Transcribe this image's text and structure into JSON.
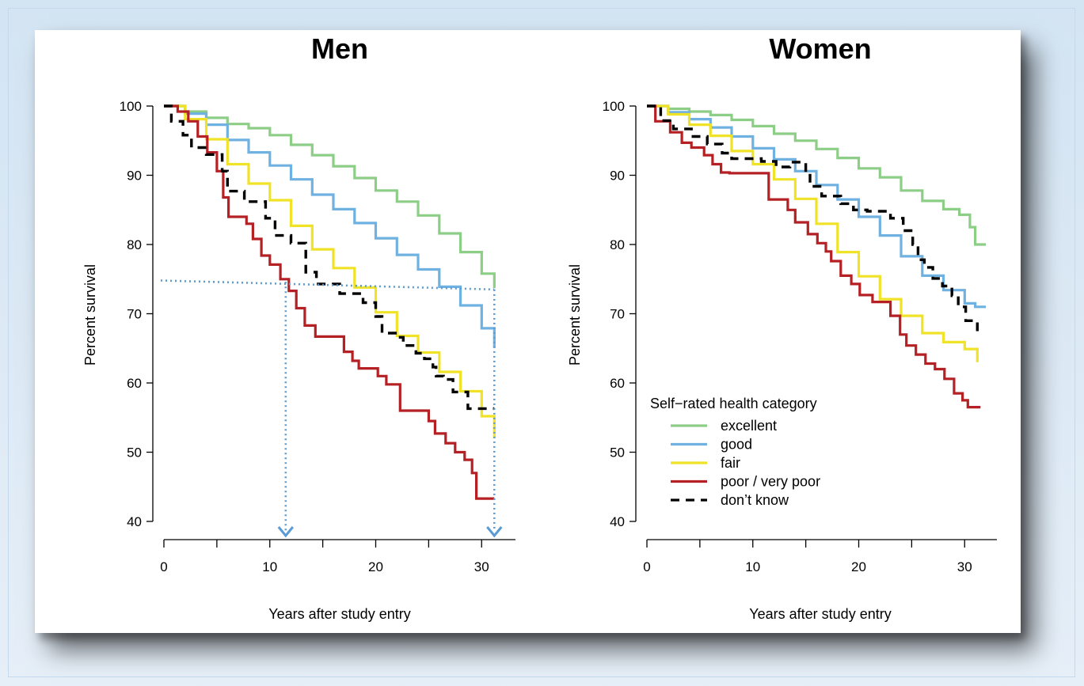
{
  "chart_data": [
    {
      "type": "line",
      "title": "Men",
      "xlabel": "Years after study entry",
      "ylabel": "Percent survival",
      "xlim": [
        0,
        32
      ],
      "ylim": [
        40,
        100
      ],
      "xticks": [
        0,
        10,
        20,
        30
      ],
      "yticks": [
        40,
        50,
        60,
        70,
        80,
        90,
        100
      ],
      "series": [
        {
          "name": "excellent",
          "color": "#8dce87",
          "style": "step",
          "x": [
            0,
            2,
            4,
            6,
            8,
            10,
            12,
            14,
            16,
            18,
            20,
            22,
            24,
            26,
            28,
            30,
            31.2
          ],
          "y": [
            100,
            99.2,
            98.3,
            97.4,
            96.8,
            95.8,
            94.4,
            92.9,
            91.3,
            89.6,
            87.8,
            86.2,
            84.2,
            81.6,
            78.9,
            75.8,
            73.7
          ]
        },
        {
          "name": "good",
          "color": "#6fb1e0",
          "style": "step",
          "x": [
            0,
            2,
            4,
            6,
            8,
            10,
            12,
            14,
            16,
            18,
            20,
            22,
            24,
            26,
            28,
            30,
            31.2
          ],
          "y": [
            100,
            98.9,
            97.3,
            95.1,
            93.3,
            91.4,
            89.4,
            87.2,
            85.1,
            83.1,
            80.9,
            78.5,
            76.4,
            73.9,
            71.2,
            67.9,
            65.1
          ]
        },
        {
          "name": "fair",
          "color": "#f0e226",
          "style": "step",
          "x": [
            0,
            2,
            4,
            6,
            8,
            10,
            12,
            14,
            16,
            18,
            20,
            22,
            24,
            26,
            28,
            30,
            31.2
          ],
          "y": [
            100,
            98.1,
            95.2,
            91.6,
            88.8,
            86.4,
            82.7,
            79.3,
            76.6,
            73.8,
            70.2,
            66.8,
            64.4,
            61.6,
            58.8,
            55.2,
            52.0
          ]
        },
        {
          "name": "poor / very poor",
          "color": "#b52024",
          "style": "step",
          "x": [
            0,
            1.3,
            2.3,
            3.2,
            4.1,
            5.0,
            5.6,
            6.1,
            7.8,
            8.4,
            9.2,
            10.0,
            11.0,
            11.8,
            12.5,
            13.3,
            14.3,
            17.0,
            17.8,
            18.4,
            20.2,
            21.0,
            22.3,
            22.8,
            25.0,
            25.6,
            26.6,
            27.5,
            28.4,
            29.1,
            29.5,
            31.2
          ],
          "y": [
            100,
            99.2,
            97.8,
            95.6,
            93.3,
            90.6,
            86.8,
            84.0,
            83.0,
            80.8,
            78.4,
            77.1,
            75.0,
            73.3,
            70.8,
            68.3,
            66.7,
            64.5,
            63.2,
            62.1,
            61.0,
            59.8,
            56.0,
            56.0,
            54.5,
            52.7,
            51.3,
            50.0,
            48.9,
            47.0,
            43.3,
            43.3
          ]
        },
        {
          "name": "don’t know",
          "color": "#000000",
          "style": "dash",
          "x": [
            0,
            0.7,
            1.8,
            2.6,
            4.0,
            5.5,
            6.0,
            7.6,
            9.6,
            10.5,
            12.0,
            13.4,
            14.4,
            16.6,
            18.8,
            20.0,
            20.6,
            22.0,
            22.6,
            23.8,
            24.6,
            25.4,
            25.7,
            26.4,
            27.3,
            28.7,
            31.2
          ],
          "y": [
            100,
            97.8,
            95.8,
            94.0,
            93.0,
            90.6,
            87.7,
            86.2,
            83.8,
            81.3,
            80.2,
            76.0,
            74.3,
            72.9,
            71.6,
            69.6,
            67.2,
            66.6,
            65.4,
            64.3,
            63.5,
            62.3,
            61.0,
            60.5,
            58.7,
            56.3,
            56.3
          ]
        }
      ],
      "annotations": {
        "dotted_guides": {
          "y_level": 74.5,
          "x_points": [
            11.5,
            31.2
          ],
          "color": "#5b9bd5"
        }
      }
    },
    {
      "type": "line",
      "title": "Women",
      "xlabel": "Years after study entry",
      "ylabel": "Percent survival",
      "xlim": [
        0,
        32
      ],
      "ylim": [
        40,
        100
      ],
      "xticks": [
        0,
        10,
        20,
        30
      ],
      "yticks": [
        40,
        50,
        60,
        70,
        80,
        90,
        100
      ],
      "legend": {
        "title": "Self−rated health category",
        "position": "bottom-left",
        "entries": [
          "excellent",
          "good",
          "fair",
          "poor / very poor",
          "don’t know"
        ]
      },
      "series": [
        {
          "name": "excellent",
          "color": "#8dce87",
          "style": "step",
          "x": [
            0,
            2,
            4,
            6,
            8,
            10,
            12,
            14,
            16,
            18,
            20,
            22,
            24,
            26,
            28,
            29.5,
            30.5,
            31.0,
            32.0
          ],
          "y": [
            100,
            99.6,
            99.2,
            98.7,
            98.0,
            97.1,
            96.0,
            95.0,
            93.8,
            92.5,
            91.0,
            89.7,
            87.8,
            86.3,
            85.1,
            84.3,
            82.5,
            80.0,
            80.0
          ]
        },
        {
          "name": "good",
          "color": "#6fb1e0",
          "style": "step",
          "x": [
            0,
            2,
            4,
            6,
            8,
            10,
            12,
            14,
            16,
            18,
            20,
            22,
            24,
            26,
            28,
            30,
            31.0,
            32.0
          ],
          "y": [
            100,
            99.1,
            98.1,
            96.9,
            95.6,
            93.9,
            92.3,
            90.6,
            88.6,
            86.5,
            84.0,
            81.3,
            78.3,
            75.5,
            73.4,
            71.5,
            71.0,
            71.0
          ]
        },
        {
          "name": "fair",
          "color": "#f0e226",
          "style": "step",
          "x": [
            0,
            2,
            4,
            6,
            8,
            10,
            12,
            14,
            16,
            18,
            20,
            22,
            24,
            26,
            28,
            30,
            31.2
          ],
          "y": [
            100,
            98.8,
            97.3,
            95.7,
            93.5,
            91.6,
            89.4,
            86.6,
            83.0,
            78.9,
            75.4,
            72.1,
            69.7,
            67.2,
            65.9,
            64.9,
            63.0
          ]
        },
        {
          "name": "poor / very poor",
          "color": "#b52024",
          "style": "step",
          "x": [
            0,
            0.8,
            2.2,
            3.3,
            4.2,
            5.4,
            6.2,
            7.0,
            7.8,
            8.8,
            11.5,
            13.3,
            14.0,
            15.2,
            16.1,
            16.9,
            17.4,
            18.3,
            19.3,
            20.1,
            21.3,
            23.0,
            23.9,
            24.5,
            25.4,
            26.3,
            27.2,
            28.1,
            29.0,
            29.8,
            30.3,
            31.5
          ],
          "y": [
            100,
            97.8,
            96.2,
            94.7,
            94.0,
            92.9,
            91.6,
            90.4,
            90.3,
            90.3,
            86.5,
            85.0,
            83.2,
            81.5,
            80.2,
            79.0,
            77.6,
            75.5,
            74.3,
            72.7,
            71.7,
            69.7,
            67.0,
            65.4,
            64.1,
            62.8,
            62.0,
            60.6,
            58.5,
            57.5,
            56.5,
            56.5
          ]
        },
        {
          "name": "don’t know",
          "color": "#000000",
          "style": "dash",
          "x": [
            0,
            1.3,
            2.5,
            4.2,
            5.7,
            7.1,
            8.0,
            10.8,
            12.2,
            13.5,
            15.0,
            15.4,
            16.5,
            18.3,
            19.5,
            20.8,
            23.0,
            24.2,
            25.1,
            25.6,
            26.2,
            27.0,
            27.9,
            28.8,
            29.4,
            30.1,
            31.2
          ],
          "y": [
            100,
            97.9,
            96.7,
            95.6,
            94.5,
            93.2,
            92.4,
            92.0,
            91.2,
            91.9,
            90.0,
            88.4,
            87.0,
            85.9,
            85.0,
            84.8,
            83.8,
            82.0,
            80.0,
            77.8,
            76.7,
            75.1,
            74.0,
            72.6,
            71.0,
            69.0,
            66.6
          ]
        }
      ]
    }
  ]
}
